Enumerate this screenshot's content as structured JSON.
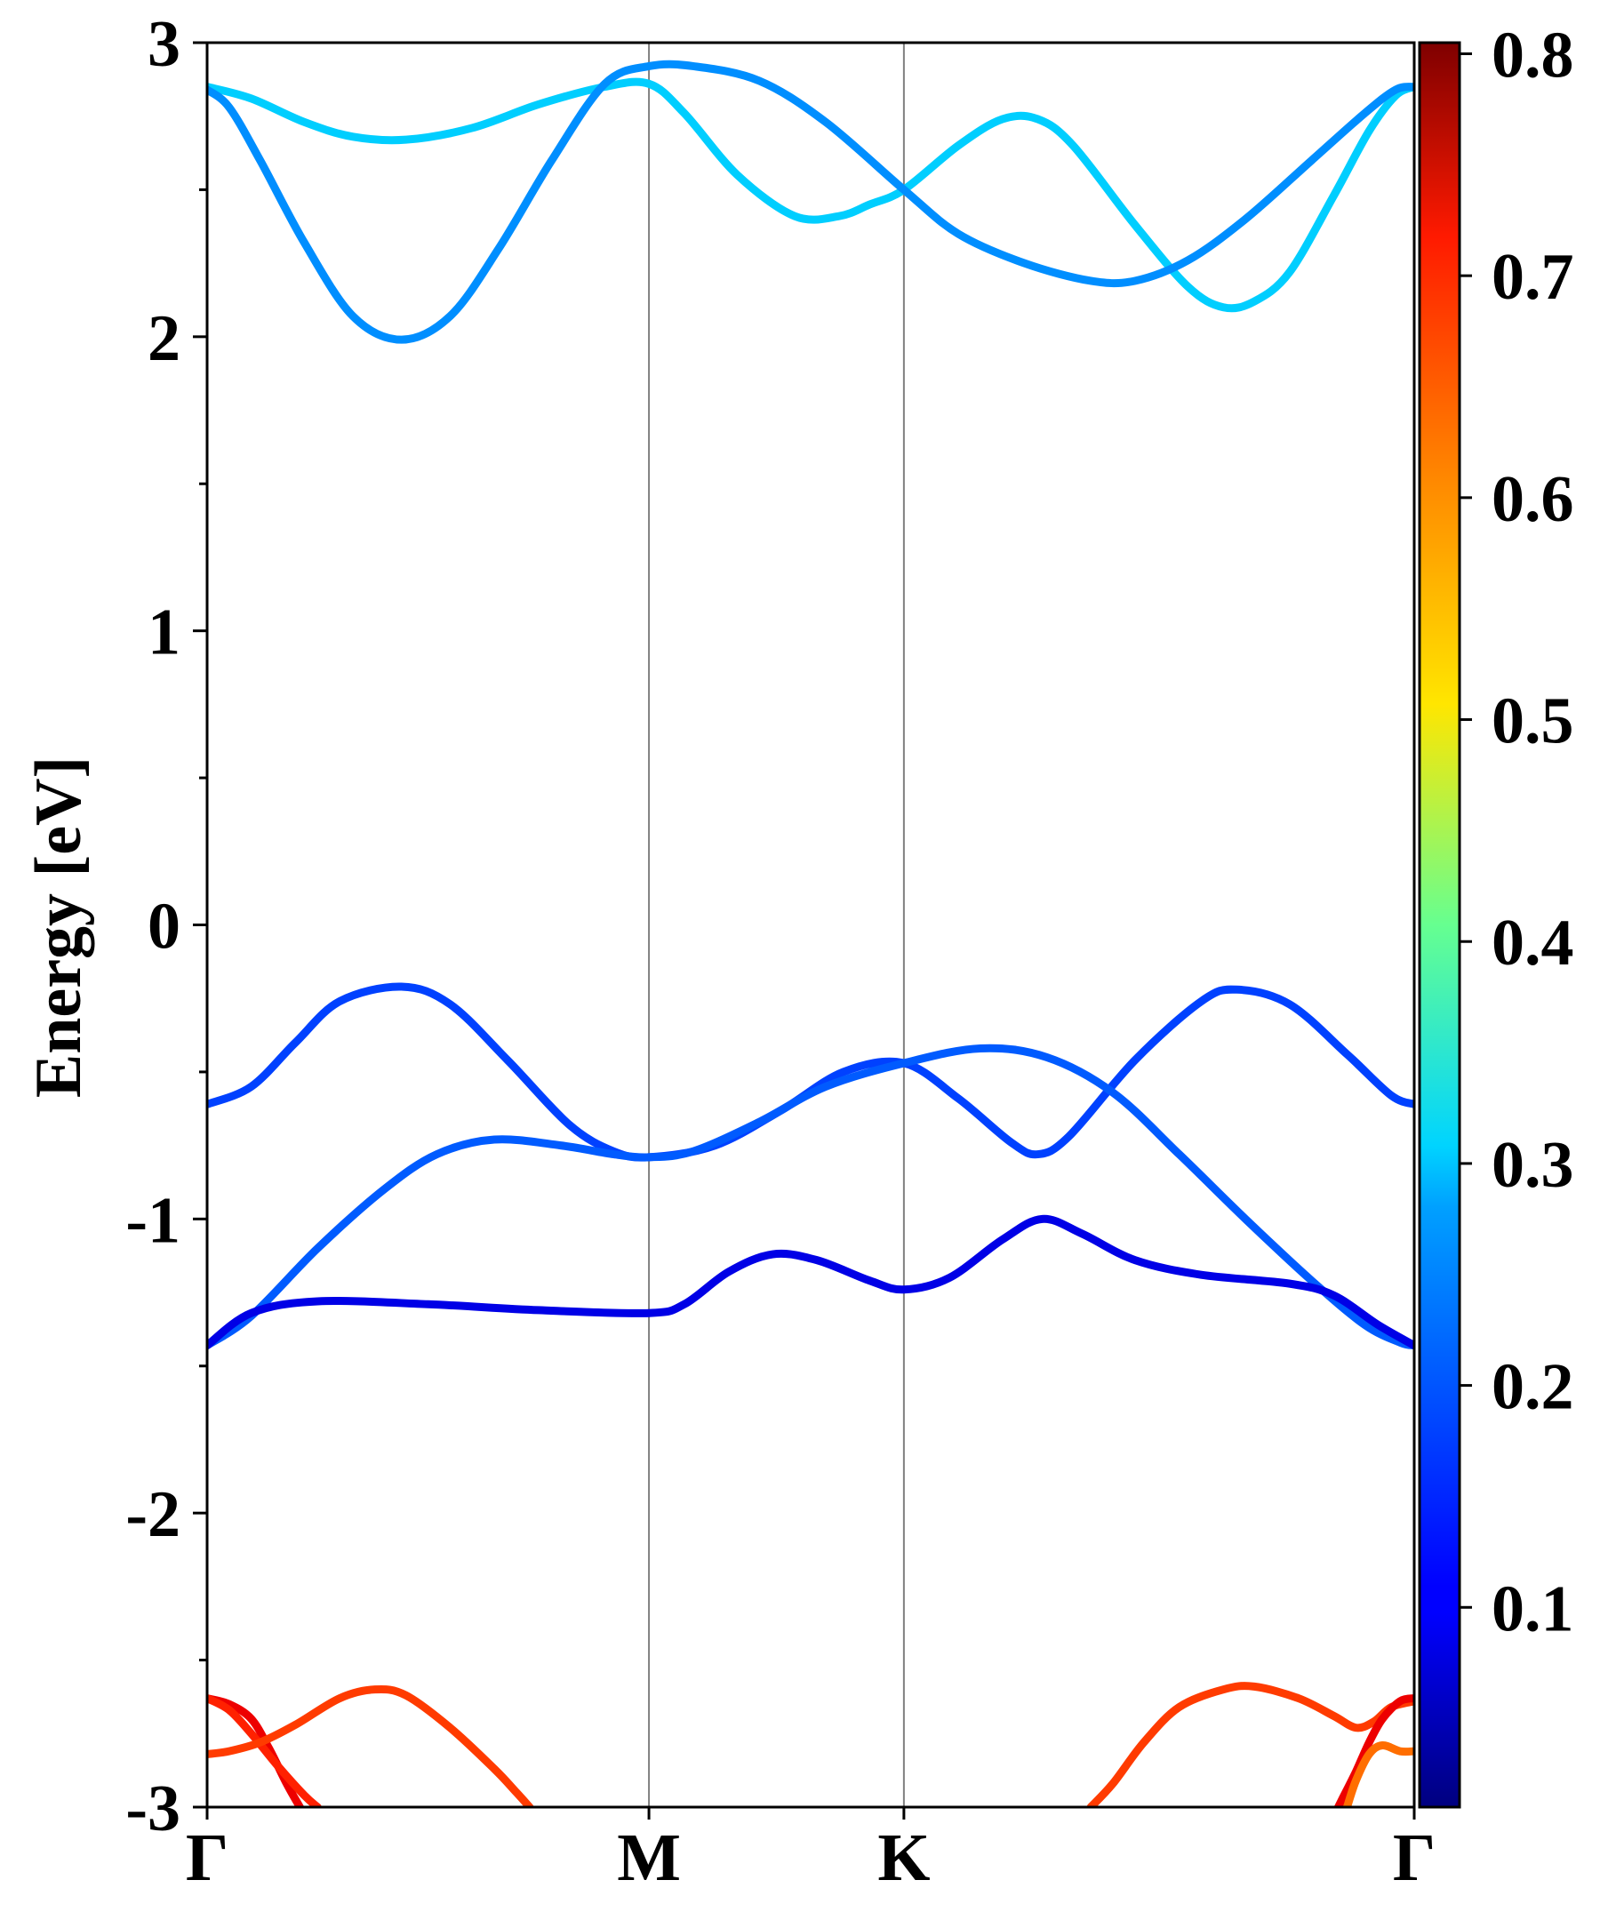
{
  "chart_data": {
    "type": "line",
    "ylabel": "Energy [eV]",
    "ylim": [
      -3,
      3
    ],
    "y_ticks": [
      "3",
      "2",
      "1",
      "0",
      "-1",
      "-2",
      "-3"
    ],
    "k_points": [
      {
        "label": "Γ",
        "x": 0.0
      },
      {
        "label": "M",
        "x": 1.0
      },
      {
        "label": "K",
        "x": 1.577
      },
      {
        "label": "Γ",
        "x": 2.732
      }
    ],
    "colorbar": {
      "min": 0.01,
      "max": 0.805,
      "ticks": [
        "0.1",
        "0.2",
        "0.3",
        "0.4",
        "0.5",
        "0.6",
        "0.7",
        "0.8"
      ],
      "colormap": "jet"
    },
    "series": [
      {
        "weight": 0.27,
        "points": [
          [
            0.0,
            2.85
          ],
          [
            0.1,
            2.81
          ],
          [
            0.22,
            2.73
          ],
          [
            0.33,
            2.68
          ],
          [
            0.45,
            2.67
          ],
          [
            0.6,
            2.71
          ],
          [
            0.75,
            2.79
          ],
          [
            0.9,
            2.85
          ],
          [
            1.0,
            2.86
          ],
          [
            1.08,
            2.76
          ],
          [
            1.2,
            2.55
          ],
          [
            1.33,
            2.41
          ],
          [
            1.43,
            2.41
          ],
          [
            1.5,
            2.45
          ],
          [
            1.577,
            2.5
          ],
          [
            1.7,
            2.65
          ],
          [
            1.8,
            2.74
          ],
          [
            1.88,
            2.74
          ],
          [
            1.96,
            2.65
          ],
          [
            2.1,
            2.38
          ],
          [
            2.22,
            2.17
          ],
          [
            2.3,
            2.1
          ],
          [
            2.37,
            2.12
          ],
          [
            2.45,
            2.22
          ],
          [
            2.55,
            2.48
          ],
          [
            2.63,
            2.7
          ],
          [
            2.69,
            2.82
          ],
          [
            2.732,
            2.85
          ]
        ]
      },
      {
        "weight": 0.22,
        "points": [
          [
            0.0,
            2.84
          ],
          [
            0.05,
            2.78
          ],
          [
            0.12,
            2.6
          ],
          [
            0.22,
            2.32
          ],
          [
            0.33,
            2.07
          ],
          [
            0.44,
            1.99
          ],
          [
            0.55,
            2.07
          ],
          [
            0.66,
            2.3
          ],
          [
            0.78,
            2.6
          ],
          [
            0.9,
            2.86
          ],
          [
            1.0,
            2.92
          ],
          [
            1.1,
            2.92
          ],
          [
            1.25,
            2.87
          ],
          [
            1.4,
            2.73
          ],
          [
            1.577,
            2.5
          ],
          [
            1.7,
            2.35
          ],
          [
            1.85,
            2.25
          ],
          [
            2.0,
            2.19
          ],
          [
            2.1,
            2.19
          ],
          [
            2.22,
            2.26
          ],
          [
            2.35,
            2.4
          ],
          [
            2.5,
            2.6
          ],
          [
            2.62,
            2.76
          ],
          [
            2.69,
            2.84
          ],
          [
            2.732,
            2.85
          ]
        ]
      },
      {
        "weight": 0.16,
        "points": [
          [
            0.0,
            -0.61
          ],
          [
            0.1,
            -0.55
          ],
          [
            0.2,
            -0.4
          ],
          [
            0.3,
            -0.26
          ],
          [
            0.44,
            -0.21
          ],
          [
            0.55,
            -0.27
          ],
          [
            0.68,
            -0.46
          ],
          [
            0.82,
            -0.68
          ],
          [
            0.92,
            -0.77
          ],
          [
            1.0,
            -0.79
          ],
          [
            1.15,
            -0.75
          ],
          [
            1.3,
            -0.63
          ],
          [
            1.44,
            -0.5
          ],
          [
            1.577,
            -0.47
          ],
          [
            1.7,
            -0.59
          ],
          [
            1.82,
            -0.74
          ],
          [
            1.88,
            -0.78
          ],
          [
            1.95,
            -0.72
          ],
          [
            2.1,
            -0.46
          ],
          [
            2.25,
            -0.26
          ],
          [
            2.33,
            -0.22
          ],
          [
            2.45,
            -0.27
          ],
          [
            2.58,
            -0.44
          ],
          [
            2.68,
            -0.58
          ],
          [
            2.732,
            -0.61
          ]
        ]
      },
      {
        "weight": 0.18,
        "points": [
          [
            0.0,
            -1.43
          ],
          [
            0.1,
            -1.33
          ],
          [
            0.25,
            -1.1
          ],
          [
            0.4,
            -0.9
          ],
          [
            0.52,
            -0.78
          ],
          [
            0.65,
            -0.73
          ],
          [
            0.8,
            -0.75
          ],
          [
            0.92,
            -0.78
          ],
          [
            1.0,
            -0.79
          ],
          [
            1.1,
            -0.77
          ],
          [
            1.25,
            -0.67
          ],
          [
            1.4,
            -0.55
          ],
          [
            1.577,
            -0.47
          ],
          [
            1.75,
            -0.42
          ],
          [
            1.9,
            -0.45
          ],
          [
            2.05,
            -0.57
          ],
          [
            2.2,
            -0.78
          ],
          [
            2.35,
            -1.0
          ],
          [
            2.5,
            -1.21
          ],
          [
            2.62,
            -1.36
          ],
          [
            2.7,
            -1.42
          ],
          [
            2.732,
            -1.43
          ]
        ]
      },
      {
        "weight": 0.09,
        "points": [
          [
            0.0,
            -1.43
          ],
          [
            0.1,
            -1.32
          ],
          [
            0.25,
            -1.28
          ],
          [
            0.5,
            -1.29
          ],
          [
            0.75,
            -1.31
          ],
          [
            1.0,
            -1.32
          ],
          [
            1.08,
            -1.29
          ],
          [
            1.18,
            -1.18
          ],
          [
            1.28,
            -1.12
          ],
          [
            1.38,
            -1.14
          ],
          [
            1.5,
            -1.21
          ],
          [
            1.577,
            -1.24
          ],
          [
            1.68,
            -1.2
          ],
          [
            1.8,
            -1.07
          ],
          [
            1.89,
            -1.0
          ],
          [
            1.98,
            -1.05
          ],
          [
            2.1,
            -1.14
          ],
          [
            2.25,
            -1.19
          ],
          [
            2.45,
            -1.22
          ],
          [
            2.55,
            -1.26
          ],
          [
            2.65,
            -1.36
          ],
          [
            2.732,
            -1.43
          ]
        ]
      },
      {
        "weight": 0.72,
        "points": [
          [
            0.0,
            -2.63
          ],
          [
            0.05,
            -2.65
          ],
          [
            0.1,
            -2.7
          ],
          [
            0.14,
            -2.8
          ],
          [
            0.18,
            -2.92
          ],
          [
            0.21,
            -3.0
          ]
        ]
      },
      {
        "weight": 0.68,
        "points": [
          [
            0.0,
            -2.63
          ],
          [
            0.05,
            -2.67
          ],
          [
            0.1,
            -2.75
          ],
          [
            0.16,
            -2.86
          ],
          [
            0.22,
            -2.96
          ],
          [
            0.25,
            -3.0
          ]
        ]
      },
      {
        "weight": 0.66,
        "points": [
          [
            0.0,
            -2.82
          ],
          [
            0.05,
            -2.81
          ],
          [
            0.12,
            -2.78
          ],
          [
            0.2,
            -2.72
          ],
          [
            0.3,
            -2.63
          ],
          [
            0.38,
            -2.6
          ],
          [
            0.45,
            -2.62
          ],
          [
            0.55,
            -2.73
          ],
          [
            0.65,
            -2.87
          ],
          [
            0.7,
            -2.95
          ],
          [
            0.73,
            -3.0
          ]
        ]
      },
      {
        "weight": 0.66,
        "points": [
          [
            2.0,
            -3.0
          ],
          [
            2.05,
            -2.92
          ],
          [
            2.12,
            -2.78
          ],
          [
            2.2,
            -2.66
          ],
          [
            2.3,
            -2.6
          ],
          [
            2.37,
            -2.59
          ],
          [
            2.47,
            -2.63
          ],
          [
            2.55,
            -2.69
          ],
          [
            2.6,
            -2.73
          ],
          [
            2.64,
            -2.71
          ],
          [
            2.68,
            -2.66
          ],
          [
            2.732,
            -2.64
          ]
        ]
      },
      {
        "weight": 0.72,
        "points": [
          [
            2.732,
            -2.63
          ],
          [
            2.7,
            -2.64
          ],
          [
            2.66,
            -2.7
          ],
          [
            2.63,
            -2.78
          ],
          [
            2.6,
            -2.88
          ],
          [
            2.57,
            -2.97
          ],
          [
            2.56,
            -3.0
          ]
        ]
      },
      {
        "weight": 0.62,
        "points": [
          [
            2.732,
            -2.81
          ],
          [
            2.7,
            -2.81
          ],
          [
            2.66,
            -2.79
          ],
          [
            2.63,
            -2.82
          ],
          [
            2.6,
            -2.91
          ],
          [
            2.58,
            -3.0
          ]
        ]
      }
    ]
  }
}
